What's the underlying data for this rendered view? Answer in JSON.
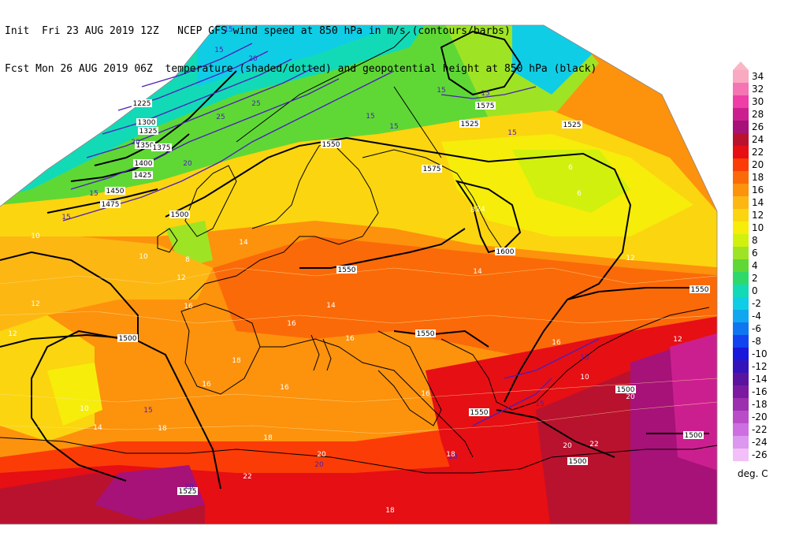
{
  "header": {
    "line1_left": "Init  Fri 23 AUG 2019 12Z",
    "line1_right": "NCEP GFS wind speed at 850 hPa in m/s (contours/barbs)",
    "line2_left": "Fcst Mon 26 AUG 2019 06Z",
    "line2_right": "temperature (shaded/dotted) and geopotential height at 850 hPa (black)"
  },
  "colorbar": {
    "unit": "deg. C",
    "levels": [
      {
        "label": "34",
        "color": "#f9a9c1"
      },
      {
        "label": "32",
        "color": "#f574b4"
      },
      {
        "label": "30",
        "color": "#ef3ea6"
      },
      {
        "label": "28",
        "color": "#cc1f8f"
      },
      {
        "label": "26",
        "color": "#a61277"
      },
      {
        "label": "24",
        "color": "#b9122f"
      },
      {
        "label": "22",
        "color": "#e60f14"
      },
      {
        "label": "20",
        "color": "#fb3c07"
      },
      {
        "label": "18",
        "color": "#fb6a08"
      },
      {
        "label": "16",
        "color": "#fd920d"
      },
      {
        "label": "14",
        "color": "#fdb712"
      },
      {
        "label": "12",
        "color": "#fbd50f"
      },
      {
        "label": "10",
        "color": "#f6ed0a"
      },
      {
        "label": "8",
        "color": "#d2f00d"
      },
      {
        "label": "6",
        "color": "#9ee424"
      },
      {
        "label": "4",
        "color": "#5fd836"
      },
      {
        "label": "2",
        "color": "#2fd86a"
      },
      {
        "label": "0",
        "color": "#12dab7"
      },
      {
        "label": "-2",
        "color": "#10cde6"
      },
      {
        "label": "-4",
        "color": "#10a7f0"
      },
      {
        "label": "-6",
        "color": "#0f76f2"
      },
      {
        "label": "-8",
        "color": "#1143f0"
      },
      {
        "label": "-10",
        "color": "#1a17dd"
      },
      {
        "label": "-12",
        "color": "#3513bb"
      },
      {
        "label": "-14",
        "color": "#5a139e"
      },
      {
        "label": "-16",
        "color": "#7b1aa0"
      },
      {
        "label": "-18",
        "color": "#9c2fae"
      },
      {
        "label": "-20",
        "color": "#b94dc8"
      },
      {
        "label": "-22",
        "color": "#cd6fe0"
      },
      {
        "label": "-24",
        "color": "#dc97ef"
      },
      {
        "label": "-26",
        "color": "#f3bff8"
      }
    ]
  },
  "map": {
    "height_labels": [
      "1225",
      "1300",
      "1325",
      "1350",
      "1375",
      "1400",
      "1425",
      "1450",
      "1475",
      "1500",
      "1525",
      "1550",
      "1575",
      "1600",
      "1500",
      "1525",
      "1550",
      "1550",
      "1500",
      "1500",
      "1500",
      "1550",
      "1550",
      "1525",
      "1575"
    ],
    "wind_labels": [
      "15",
      "15",
      "20",
      "20",
      "25",
      "15",
      "15",
      "15",
      "25",
      "20",
      "15",
      "15",
      "15",
      "20",
      "20",
      "15",
      "15",
      "15",
      "15",
      "20"
    ],
    "temp_labels": [
      "6",
      "6",
      "8",
      "8",
      "10",
      "10",
      "10",
      "12",
      "12",
      "12",
      "12",
      "14",
      "14",
      "14",
      "16",
      "16",
      "16",
      "16",
      "16",
      "16",
      "18",
      "18",
      "18",
      "18",
      "20",
      "20",
      "20",
      "22",
      "22",
      "24",
      "14",
      "12",
      "10",
      "16",
      "18"
    ]
  }
}
